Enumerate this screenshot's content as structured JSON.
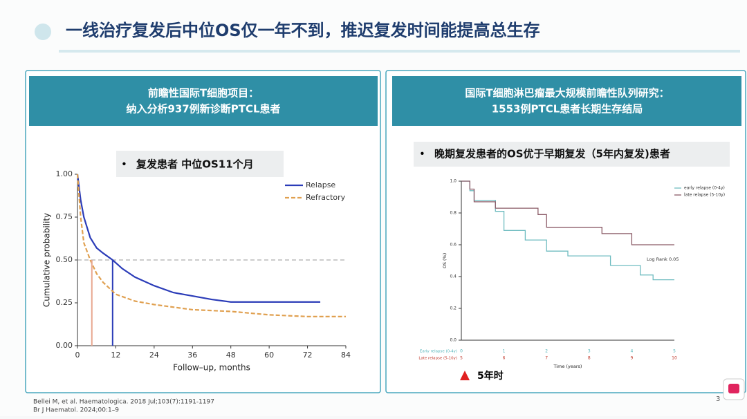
{
  "slide": {
    "title": "一线治疗复发后中位OS仅一年不到，推迟复发时间能提高总生存",
    "page_number": "3",
    "references": [
      "Bellei M, et al. Haematologica. 2018 Jul;103(7):1191-1197",
      "Br J Haematol. 2024;00:1–9"
    ]
  },
  "left_panel": {
    "header": [
      "前瞻性国际T细胞项目：",
      "纳入分析937例新诊断PTCL患者"
    ],
    "bullet": "•",
    "callout": "复发患者  中位OS11个月",
    "chart": {
      "type": "line",
      "xlabel": "Follow–up, months",
      "ylabel": "Cumulative probability",
      "xlim": [
        0,
        84
      ],
      "xticks": [
        0,
        12,
        24,
        36,
        48,
        60,
        72,
        84
      ],
      "ylim": [
        0,
        1
      ],
      "yticks": [
        {
          "value": 0,
          "label": "0.00"
        },
        {
          "value": 0.25,
          "label": "0.25"
        },
        {
          "value": 0.5,
          "label": "0.50"
        },
        {
          "value": 0.75,
          "label": "0.75"
        },
        {
          "value": 1,
          "label": "1.00"
        }
      ],
      "reference_line": 0.5,
      "series": [
        {
          "name": "Relapse",
          "color": "#2b3cb8",
          "dashed": false,
          "median": 11,
          "x": [
            0,
            1,
            2,
            4,
            6,
            8,
            11,
            14,
            18,
            24,
            30,
            36,
            42,
            48,
            60,
            76
          ],
          "values": [
            1,
            0.85,
            0.75,
            0.63,
            0.57,
            0.54,
            0.5,
            0.45,
            0.4,
            0.35,
            0.31,
            0.29,
            0.27,
            0.255,
            0.255,
            0.255
          ]
        },
        {
          "name": "Refractory",
          "color": "#e0a050",
          "dashed": true,
          "median": 4.5,
          "median_color": "#e8a890",
          "x": [
            0,
            1,
            2,
            4,
            6,
            8,
            12,
            18,
            24,
            36,
            48,
            60,
            72,
            84
          ],
          "values": [
            1,
            0.75,
            0.6,
            0.5,
            0.42,
            0.37,
            0.3,
            0.26,
            0.24,
            0.21,
            0.2,
            0.18,
            0.17,
            0.17
          ]
        }
      ]
    }
  },
  "right_panel": {
    "header": [
      "国际T细胞淋巴瘤最大规模前瞻性队列研究：",
      "1553例PTCL患者长期生存结局"
    ],
    "bullet": "•",
    "callout": "晚期复发患者的OS优于早期复发（5年内复发)患者",
    "chart": {
      "type": "step",
      "xlabel": "Time (years)",
      "ylabel": "OS (%)",
      "annotation": "Log Rank 0.05",
      "xlim": [
        0,
        5
      ],
      "ylim": [
        0,
        1
      ],
      "yticks": [
        {
          "value": 0,
          "label": "0.0"
        },
        {
          "value": 0.2,
          "label": "0.2"
        },
        {
          "value": 0.4,
          "label": "0.4"
        },
        {
          "value": 0.6,
          "label": "0.6"
        },
        {
          "value": 0.8,
          "label": "0.8"
        },
        {
          "value": 1,
          "label": "1.0"
        }
      ],
      "tick_rows": [
        {
          "name": "Early relapse (0-4y)",
          "color": "#4fb3b8",
          "labels": [
            0,
            1,
            2,
            3,
            4,
            5
          ]
        },
        {
          "name": "Late relapse (5-10y)",
          "color": "#c0392b",
          "labels": [
            5,
            6,
            7,
            8,
            9,
            10
          ]
        }
      ],
      "series": [
        {
          "name": "early relapse (0-4y)",
          "color": "#6fbcc0",
          "x": [
            0,
            0.2,
            0.3,
            0.8,
            1,
            1.5,
            2,
            2.5,
            3.5,
            4.2,
            4.5,
            5
          ],
          "values": [
            1,
            0.94,
            0.88,
            0.81,
            0.69,
            0.63,
            0.56,
            0.53,
            0.47,
            0.41,
            0.38,
            0.38
          ]
        },
        {
          "name": "late relapse (5-10y)",
          "color": "#8a5a66",
          "x": [
            0,
            0.2,
            0.3,
            0.8,
            1.8,
            2,
            3.3,
            4,
            5
          ],
          "values": [
            1,
            0.95,
            0.87,
            0.83,
            0.79,
            0.71,
            0.67,
            0.6,
            0.6
          ]
        }
      ]
    },
    "note": "5年时"
  }
}
